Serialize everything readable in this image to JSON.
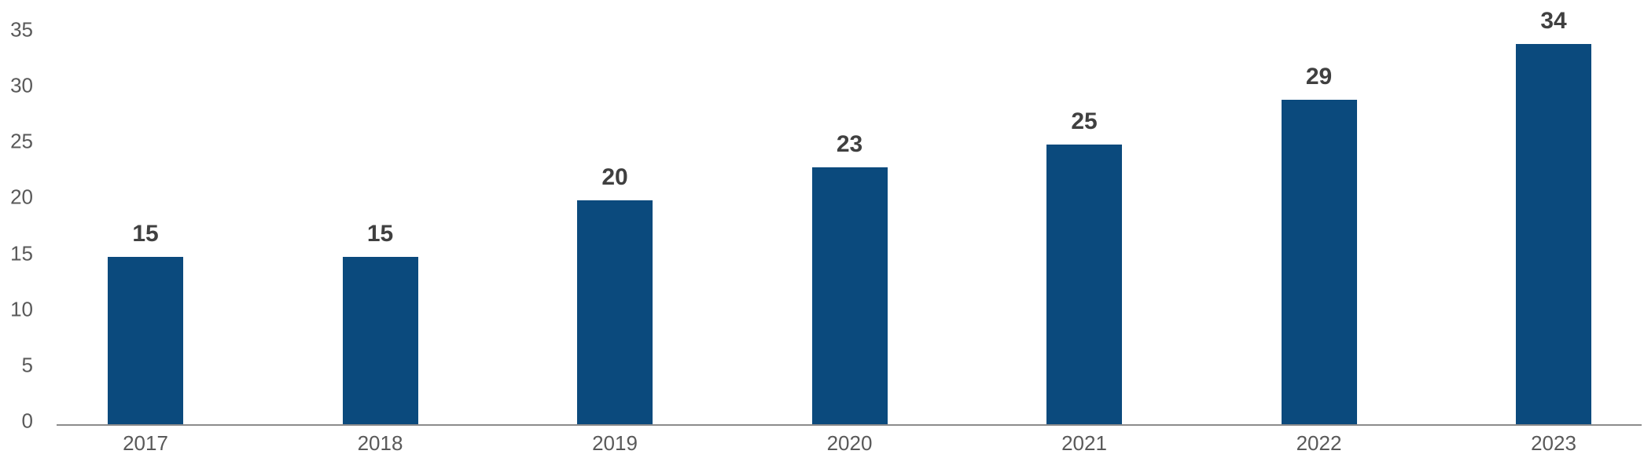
{
  "chart_data": {
    "type": "bar",
    "title": "",
    "xlabel": "",
    "ylabel": "",
    "categories": [
      "2017",
      "2018",
      "2019",
      "2020",
      "2021",
      "2022",
      "2023"
    ],
    "values": [
      15,
      15,
      20,
      23,
      25,
      29,
      34
    ],
    "data_labels": [
      "15",
      "15",
      "20",
      "23",
      "25",
      "29",
      "34"
    ],
    "y_ticks": [
      0,
      5,
      10,
      15,
      20,
      25,
      30,
      35
    ],
    "y_tick_labels": [
      "0",
      "5",
      "10",
      "15",
      "20",
      "25",
      "30",
      "35"
    ],
    "ylim": [
      0,
      35
    ],
    "grid": false,
    "legend_position": "none",
    "colors": {
      "bar_fill": "#0B4A7D",
      "value_label": "#404040",
      "axis_text": "#595959",
      "axis_line": "#8C8C8C",
      "background": "#FFFFFF"
    }
  }
}
